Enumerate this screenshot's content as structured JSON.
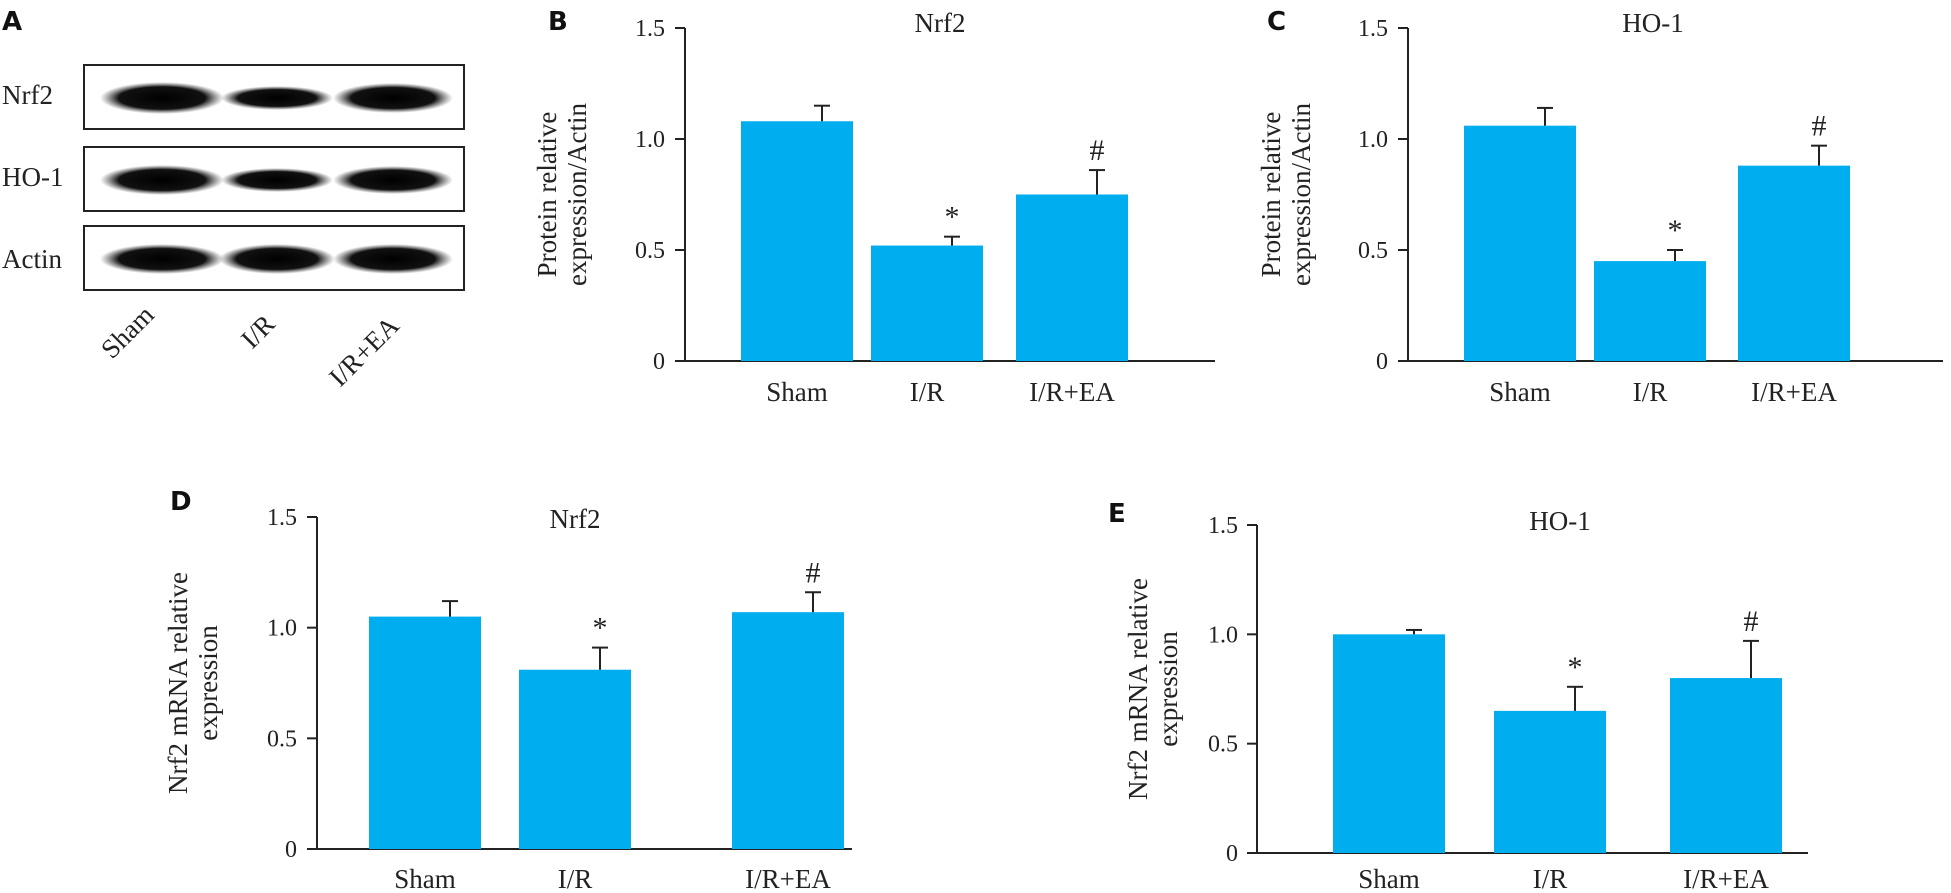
{
  "colors": {
    "bar": "#00aeef",
    "axis": "#222222"
  },
  "blot": {
    "letter": "A",
    "rows": [
      "Nrf2",
      "HO-1",
      "Actin"
    ],
    "lanes": [
      "Sham",
      "I/R",
      "I/R+EA"
    ]
  },
  "chart_data": [
    {
      "panel": "B",
      "type": "bar",
      "title": "Nrf2",
      "ylabel_lines": [
        "Protein relative",
        "expression/Actin"
      ],
      "categories": [
        "Sham",
        "I/R",
        "I/R+EA"
      ],
      "values": [
        1.08,
        0.52,
        0.75
      ],
      "errors": [
        0.07,
        0.04,
        0.11
      ],
      "marks": [
        "",
        "*",
        "#"
      ],
      "ylim": [
        0,
        1.5
      ],
      "yticks": [
        "0",
        "0.5",
        "1.0",
        "1.5"
      ]
    },
    {
      "panel": "C",
      "type": "bar",
      "title": "HO-1",
      "ylabel_lines": [
        "Protein relative",
        "expression/Actin"
      ],
      "categories": [
        "Sham",
        "I/R",
        "I/R+EA"
      ],
      "values": [
        1.06,
        0.45,
        0.88
      ],
      "errors": [
        0.08,
        0.05,
        0.09
      ],
      "marks": [
        "",
        "*",
        "#"
      ],
      "ylim": [
        0,
        1.5
      ],
      "yticks": [
        "0",
        "0.5",
        "1.0",
        "1.5"
      ]
    },
    {
      "panel": "D",
      "type": "bar",
      "title": "Nrf2",
      "ylabel_lines": [
        "Nrf2 mRNA relative",
        "expression"
      ],
      "categories": [
        "Sham",
        "I/R",
        "I/R+EA"
      ],
      "values": [
        1.05,
        0.81,
        1.07
      ],
      "errors": [
        0.07,
        0.1,
        0.09
      ],
      "marks": [
        "",
        "*",
        "#"
      ],
      "ylim": [
        0,
        1.5
      ],
      "yticks": [
        "0",
        "0.5",
        "1.0",
        "1.5"
      ]
    },
    {
      "panel": "E",
      "type": "bar",
      "title": "HO-1",
      "ylabel_lines": [
        "Nrf2 mRNA relative",
        "expression"
      ],
      "categories": [
        "Sham",
        "I/R",
        "I/R+EA"
      ],
      "values": [
        1.0,
        0.65,
        0.8
      ],
      "errors": [
        0.02,
        0.11,
        0.17
      ],
      "marks": [
        "",
        "*",
        "#"
      ],
      "ylim": [
        0,
        1.5
      ],
      "yticks": [
        "0",
        "0.5",
        "1.0",
        "1.5"
      ]
    }
  ]
}
